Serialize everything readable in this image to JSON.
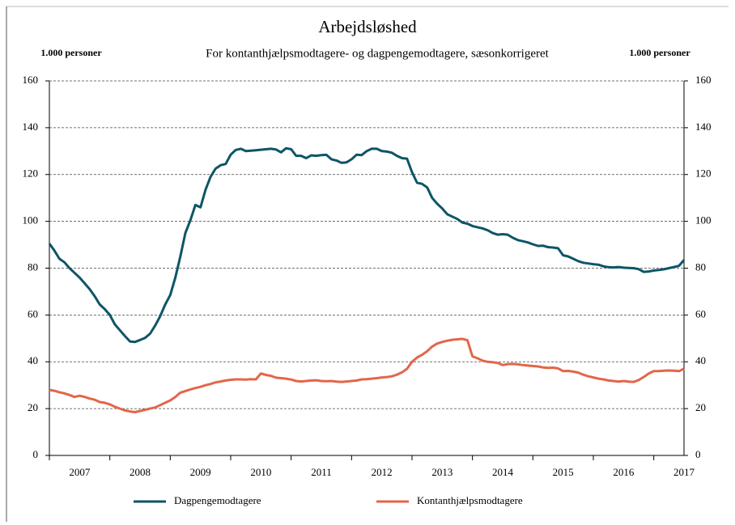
{
  "chart_data": {
    "type": "line",
    "title": "Arbejdsløshed",
    "subtitle": "For kontanthjælpsmodtagere- og dagpengemodtagere, sæsonkorrigeret",
    "y_label": "1.000 personer",
    "y2_label": "1.000 personer",
    "categories": [
      null,
      null,
      null,
      null,
      null,
      null,
      "2007",
      null,
      null,
      null,
      null,
      null,
      null,
      null,
      null,
      null,
      null,
      null,
      "2008",
      null,
      null,
      null,
      null,
      null,
      null,
      null,
      null,
      null,
      null,
      null,
      "2009",
      null,
      null,
      null,
      null,
      null,
      null,
      null,
      null,
      null,
      null,
      null,
      "2010",
      null,
      null,
      null,
      null,
      null,
      null,
      null,
      null,
      null,
      null,
      null,
      "2011",
      null,
      null,
      null,
      null,
      null,
      null,
      null,
      null,
      null,
      null,
      null,
      "2012",
      null,
      null,
      null,
      null,
      null,
      null,
      null,
      null,
      null,
      null,
      null,
      "2013",
      null,
      null,
      null,
      null,
      null,
      null,
      null,
      null,
      null,
      null,
      null,
      "2014",
      null,
      null,
      null,
      null,
      null,
      null,
      null,
      null,
      null,
      null,
      null,
      "2015",
      null,
      null,
      null,
      null,
      null,
      null,
      null,
      null,
      null,
      null,
      null,
      "2016",
      null,
      null,
      null,
      null,
      null,
      null,
      null,
      null,
      null,
      null,
      null,
      "2017"
    ],
    "series": [
      {
        "name": "Dagpengemodtagere",
        "color": "#0d5567",
        "values": [
          90.5,
          87.5,
          84,
          82.5,
          80,
          78,
          76,
          73.5,
          71,
          68,
          64.5,
          62.5,
          60,
          56,
          53.5,
          51,
          48.7,
          48.5,
          49.3,
          50.2,
          52,
          55.5,
          59.5,
          64.5,
          68.5,
          76,
          85,
          95,
          100.5,
          107,
          106,
          113.5,
          119,
          122.5,
          124,
          124.5,
          128.5,
          130.5,
          131,
          130,
          130.2,
          130.4,
          130.6,
          130.8,
          131,
          130.7,
          129.5,
          131.2,
          130.8,
          128,
          128,
          127,
          128.2,
          128,
          128.3,
          128.4,
          126.5,
          126,
          125,
          125.2,
          126.5,
          128.5,
          128.3,
          130,
          131,
          131,
          130,
          129.8,
          129.3,
          128,
          127,
          126.8,
          121,
          116.5,
          116,
          114.5,
          110,
          107.5,
          105.5,
          103,
          102,
          101,
          99.5,
          99,
          98,
          97.5,
          97,
          96.2,
          95,
          94.3,
          94.5,
          94.3,
          93,
          92,
          91.5,
          91,
          90.2,
          89.5,
          89.6,
          89,
          88.8,
          88.5,
          85.5,
          85,
          84,
          83,
          82.3,
          82,
          81.7,
          81.5,
          80.8,
          80.4,
          80.3,
          80.5,
          80.2,
          80.1,
          80,
          79.6,
          78.4,
          78.6,
          79,
          79.2,
          79.5,
          80,
          80.5,
          81,
          83.5
        ]
      },
      {
        "name": "Kontanthjælpsmodtagere",
        "color": "#e2664a",
        "values": [
          28,
          27.6,
          27,
          26.5,
          25.8,
          25,
          25.5,
          25,
          24.3,
          23.8,
          22.8,
          22.5,
          21.8,
          20.8,
          20,
          19.2,
          18.8,
          18.5,
          19,
          19.5,
          20,
          20.5,
          21.5,
          22.5,
          23.5,
          25,
          26.8,
          27.5,
          28.2,
          28.8,
          29.3,
          30,
          30.5,
          31.2,
          31.6,
          32,
          32.3,
          32.5,
          32.5,
          32.4,
          32.6,
          32.5,
          35,
          34.4,
          34,
          33.2,
          33,
          32.8,
          32.4,
          31.8,
          31.6,
          31.8,
          32,
          32.1,
          31.8,
          31.7,
          31.8,
          31.5,
          31.4,
          31.6,
          31.8,
          32,
          32.5,
          32.6,
          32.8,
          33,
          33.3,
          33.5,
          33.8,
          34.5,
          35.5,
          37,
          40,
          41.8,
          43,
          44.5,
          46.5,
          47.8,
          48.5,
          49,
          49.4,
          49.6,
          49.8,
          49.2,
          42.3,
          41.5,
          40.5,
          40,
          39.8,
          39.5,
          38.6,
          39,
          39.1,
          38.9,
          38.6,
          38.4,
          38.2,
          38,
          37.6,
          37.4,
          37.5,
          37.2,
          36,
          36.1,
          35.8,
          35.4,
          34.5,
          33.8,
          33.3,
          32.8,
          32.5,
          32,
          31.8,
          31.5,
          31.8,
          31.5,
          31.4,
          32.2,
          33.5,
          35,
          36,
          36,
          36.2,
          36.3,
          36.2,
          36,
          37
        ]
      }
    ],
    "ylim": [
      0,
      160
    ],
    "yticks": [
      0,
      20,
      40,
      60,
      80,
      100,
      120,
      140,
      160
    ],
    "y2lim": [
      0,
      160
    ],
    "y2ticks": [
      0,
      20,
      40,
      60,
      80,
      100,
      120,
      140,
      160
    ],
    "grid": true,
    "legend": "bottom"
  }
}
